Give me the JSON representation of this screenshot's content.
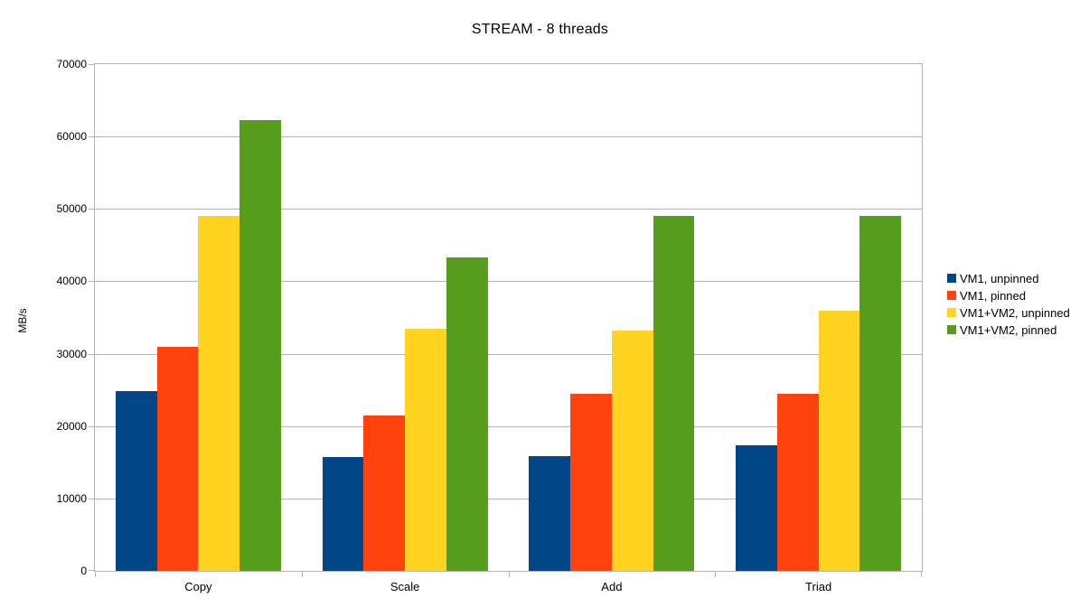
{
  "chart_data": {
    "type": "bar",
    "title": "STREAM - 8 threads",
    "xlabel": "",
    "ylabel": "MB/s",
    "categories": [
      "Copy",
      "Scale",
      "Add",
      "Triad"
    ],
    "series": [
      {
        "name": "VM1, unpinned",
        "color": "#004586",
        "values": [
          24800,
          15700,
          15900,
          17400
        ]
      },
      {
        "name": "VM1, pinned",
        "color": "#ff420e",
        "values": [
          31000,
          21500,
          24400,
          24400
        ]
      },
      {
        "name": "VM1+VM2, unpinned",
        "color": "#ffd320",
        "values": [
          49100,
          33400,
          33200,
          35900
        ]
      },
      {
        "name": "VM1+VM2, pinned",
        "color": "#579d1c",
        "values": [
          62300,
          43300,
          49000,
          49000
        ]
      }
    ],
    "ylim": [
      0,
      70000
    ],
    "yticks": [
      0,
      10000,
      20000,
      30000,
      40000,
      50000,
      60000,
      70000
    ],
    "grid": true,
    "legend_position": "right",
    "axis_color": "#b3b3b3",
    "text_color": "#000000",
    "background": "#ffffff"
  }
}
